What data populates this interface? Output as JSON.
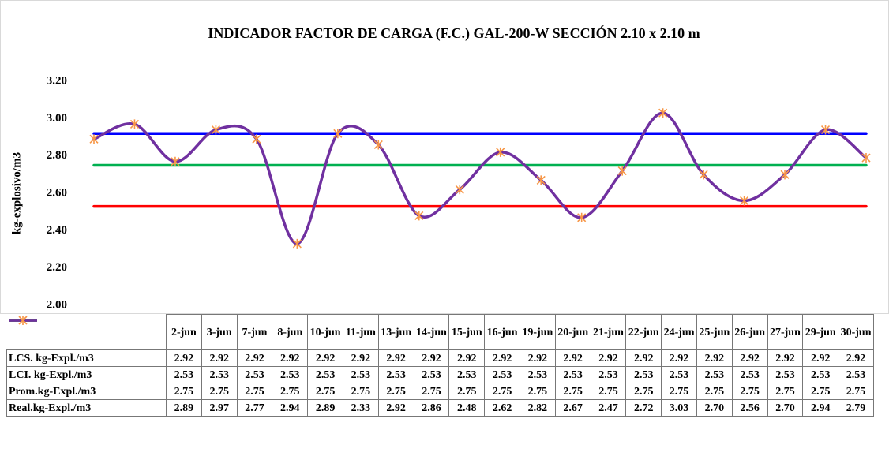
{
  "chart_data": {
    "type": "line",
    "title": "INDICADOR FACTOR DE CARGA (F.C.)  GAL-200-W SECCIÓN 2.10 x 2.10 m",
    "y_label": "kg-explosivo/m3",
    "categories": [
      "2-jun",
      "3-jun",
      "7-jun",
      "8-jun",
      "10-jun",
      "11-jun",
      "13-jun",
      "14-jun",
      "15-jun",
      "16-jun",
      "19-jun",
      "20-jun",
      "21-jun",
      "22-jun",
      "24-jun",
      "25-jun",
      "26-jun",
      "27-jun",
      "29-jun",
      "30-jun"
    ],
    "ylim": [
      2.0,
      3.2
    ],
    "yticks": [
      {
        "value": 2.0,
        "label": "2.00"
      },
      {
        "value": 2.2,
        "label": "2.20"
      },
      {
        "value": 2.4,
        "label": "2.40"
      },
      {
        "value": 2.6,
        "label": "2.60"
      },
      {
        "value": 2.8,
        "label": "2.80"
      },
      {
        "value": 3.0,
        "label": "3.00"
      },
      {
        "value": 3.2,
        "label": "3.20"
      }
    ],
    "series": [
      {
        "name": "LCS. kg-Expl./m3",
        "color": "#0000ff",
        "values": [
          2.92,
          2.92,
          2.92,
          2.92,
          2.92,
          2.92,
          2.92,
          2.92,
          2.92,
          2.92,
          2.92,
          2.92,
          2.92,
          2.92,
          2.92,
          2.92,
          2.92,
          2.92,
          2.92,
          2.92
        ]
      },
      {
        "name": "LCI. kg-Expl./m3",
        "color": "#ff0000",
        "values": [
          2.53,
          2.53,
          2.53,
          2.53,
          2.53,
          2.53,
          2.53,
          2.53,
          2.53,
          2.53,
          2.53,
          2.53,
          2.53,
          2.53,
          2.53,
          2.53,
          2.53,
          2.53,
          2.53,
          2.53
        ]
      },
      {
        "name": "Prom.kg-Expl./m3",
        "color": "#00b050",
        "values": [
          2.75,
          2.75,
          2.75,
          2.75,
          2.75,
          2.75,
          2.75,
          2.75,
          2.75,
          2.75,
          2.75,
          2.75,
          2.75,
          2.75,
          2.75,
          2.75,
          2.75,
          2.75,
          2.75,
          2.75
        ]
      },
      {
        "name": "Real.kg-Expl./m3",
        "color": "#7030a0",
        "marker_color": "#f79646",
        "smooth": true,
        "values": [
          2.89,
          2.97,
          2.77,
          2.94,
          2.89,
          2.33,
          2.92,
          2.86,
          2.48,
          2.62,
          2.82,
          2.67,
          2.47,
          2.72,
          3.03,
          2.7,
          2.56,
          2.7,
          2.94,
          2.79
        ],
        "value_labels": [
          "2.89",
          "2.97",
          "2.77",
          "2.94",
          "2.89",
          "2.33",
          "2.92",
          "2.86",
          "2.48",
          "2.62",
          "2.82",
          "2.67",
          "2.47",
          "2.72",
          "3.03",
          "2.70",
          "2.56",
          "2.70",
          "2.94",
          "2.79"
        ]
      }
    ]
  }
}
